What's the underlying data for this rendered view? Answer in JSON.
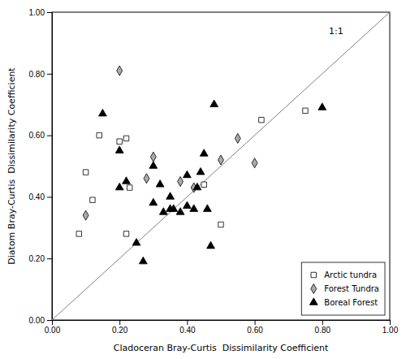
{
  "chart_data": {
    "type": "scatter",
    "xlabel": "Cladoceran Bray-Curtis  Dissimilarity Coefficient",
    "ylabel": "Diatom Bray-Curtis  Dissimilarity Coefficient",
    "series": [
      {
        "name": "Arctic tundra",
        "color": "white",
        "marker": "square",
        "x": [
          0.08,
          0.1,
          0.12,
          0.14,
          0.2,
          0.22,
          0.22,
          0.23,
          0.45,
          0.5,
          0.62,
          0.75
        ],
        "values": [
          0.28,
          0.48,
          0.39,
          0.6,
          0.58,
          0.59,
          0.28,
          0.43,
          0.44,
          0.31,
          0.65,
          0.68
        ]
      },
      {
        "name": "Forest Tundra",
        "color": "#aaaaaa",
        "marker": "diamond",
        "x": [
          0.1,
          0.2,
          0.28,
          0.3,
          0.38,
          0.42,
          0.5,
          0.55,
          0.6
        ],
        "values": [
          0.34,
          0.81,
          0.46,
          0.53,
          0.45,
          0.43,
          0.52,
          0.59,
          0.51
        ]
      },
      {
        "name": "Boreal Forest",
        "color": "black",
        "marker": "triangle",
        "x": [
          0.15,
          0.2,
          0.2,
          0.22,
          0.25,
          0.27,
          0.3,
          0.3,
          0.32,
          0.33,
          0.35,
          0.35,
          0.36,
          0.38,
          0.4,
          0.4,
          0.42,
          0.43,
          0.44,
          0.45,
          0.46,
          0.47,
          0.48,
          0.8
        ],
        "values": [
          0.67,
          0.55,
          0.43,
          0.45,
          0.25,
          0.19,
          0.38,
          0.5,
          0.44,
          0.35,
          0.36,
          0.4,
          0.36,
          0.35,
          0.37,
          0.47,
          0.36,
          0.43,
          0.48,
          0.54,
          0.36,
          0.24,
          0.7,
          0.69
        ]
      }
    ],
    "reference_lines": [
      {
        "x": [
          0,
          1
        ],
        "y": [
          0,
          1
        ],
        "color": "#808080",
        "label": "1:1"
      }
    ],
    "xlim": [
      0.0,
      1.0
    ],
    "ylim": [
      0.0,
      1.0
    ],
    "xticks": [
      {
        "value": 0.0,
        "label": "0.00"
      },
      {
        "value": 0.2,
        "label": "0.20"
      },
      {
        "value": 0.4,
        "label": "0.40"
      },
      {
        "value": 0.6,
        "label": "0.60"
      },
      {
        "value": 0.8,
        "label": "0.80"
      },
      {
        "value": 1.0,
        "label": "1.00"
      }
    ],
    "yticks": [
      {
        "value": 0.0,
        "label": "0.00"
      },
      {
        "value": 0.2,
        "label": "0.20"
      },
      {
        "value": 0.4,
        "label": "0.40"
      },
      {
        "value": 0.6,
        "label": "0.60"
      },
      {
        "value": 0.8,
        "label": "0.80"
      },
      {
        "value": 1.0,
        "label": "1.00"
      }
    ],
    "legend": "lower right",
    "grid": false
  }
}
